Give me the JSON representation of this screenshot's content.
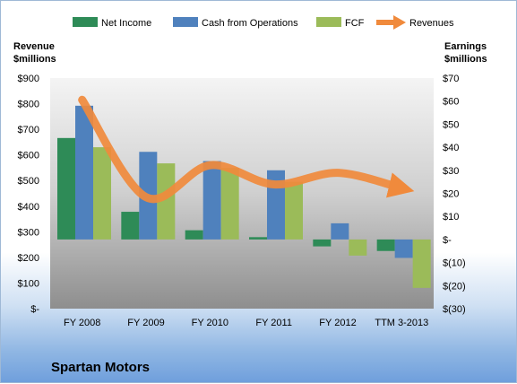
{
  "chart_data": {
    "type": "bar",
    "title": "Spartan Motors",
    "categories": [
      "FY 2008",
      "FY 2009",
      "FY 2010",
      "FY 2011",
      "FY 2012",
      "TTM 3-2013"
    ],
    "series": [
      {
        "name": "Net Income",
        "axis": "right",
        "color": "#2e8b57",
        "values": [
          44,
          12,
          4,
          1,
          -3,
          -5
        ]
      },
      {
        "name": "Cash from Operations",
        "axis": "right",
        "color": "#4f81bd",
        "values": [
          58,
          38,
          34,
          30,
          7,
          -8
        ]
      },
      {
        "name": "FCF",
        "axis": "right",
        "color": "#9bbb59",
        "values": [
          40,
          33,
          31,
          25,
          -7,
          -21
        ]
      },
      {
        "name": "Revenues",
        "axis": "left",
        "type": "line",
        "color": "#f08a3c",
        "values": [
          815,
          435,
          560,
          485,
          530,
          470
        ]
      }
    ],
    "left_axis": {
      "label_line1": "Revenue",
      "label_line2": "$millions",
      "range": [
        0,
        900
      ],
      "ticks": [
        "$900",
        "$800",
        "$700",
        "$600",
        "$500",
        "$400",
        "$300",
        "$200",
        "$100",
        "$-"
      ]
    },
    "right_axis": {
      "label_line1": "Earnings",
      "label_line2": "$millions",
      "range": [
        -30,
        70
      ],
      "ticks": [
        "$70",
        "$60",
        "$50",
        "$40",
        "$30",
        "$20",
        "$10",
        "$-",
        "$(10)",
        "$(20)",
        "$(30)"
      ]
    },
    "legend_position": "top",
    "grid": false
  }
}
